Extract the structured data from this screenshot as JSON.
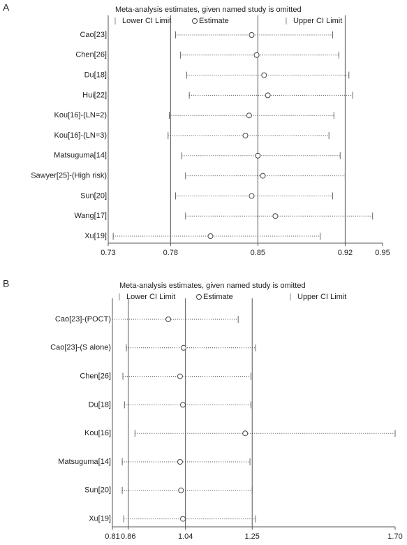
{
  "chart_data": [
    {
      "type": "forest",
      "panel": "A",
      "title": "Meta-analysis estimates, given named study is omitted",
      "legend": [
        "Lower CI Limit",
        "Estimate",
        "Upper CI Limit"
      ],
      "categories": [
        "Cao[23]",
        "Chen[26]",
        "Du[18]",
        "Hui[22]",
        "Kou[16]-(LN=2)",
        "Kou[16]-(LN=3)",
        "Matsuguma[14]",
        "Sawyer[25]-(High risk)",
        "Sun[20]",
        "Wang[17]",
        "Xu[19]"
      ],
      "lower": [
        0.784,
        0.788,
        0.793,
        0.795,
        0.779,
        0.778,
        0.789,
        0.792,
        0.784,
        0.792,
        0.734
      ],
      "estimate": [
        0.845,
        0.849,
        0.855,
        0.858,
        0.843,
        0.84,
        0.85,
        0.854,
        0.845,
        0.864,
        0.812
      ],
      "upper": [
        0.91,
        0.915,
        0.923,
        0.926,
        0.911,
        0.907,
        0.916,
        0.92,
        0.91,
        0.942,
        0.9
      ],
      "xlim": [
        0.73,
        0.95
      ],
      "xticks": [
        0.73,
        0.78,
        0.85,
        0.92,
        0.95
      ],
      "reference_lines": [
        0.78,
        0.85,
        0.92
      ]
    },
    {
      "type": "forest",
      "panel": "B",
      "title": "Meta-analysis estimates, given named study is omitted",
      "legend": [
        "Lower CI Limit",
        "Estimate",
        "Upper CI Limit"
      ],
      "categories": [
        "Cao[23]-(POCT)",
        "Cao[23]-(S alone)",
        "Chen[26]",
        "Du[18]",
        "Kou[16]",
        "Matsuguma[14]",
        "Sun[20]",
        "Xu[19]"
      ],
      "lower": [
        0.81,
        0.854,
        0.843,
        0.848,
        0.881,
        0.841,
        0.841,
        0.846
      ],
      "estimate": [
        0.986,
        1.034,
        1.023,
        1.032,
        1.228,
        1.023,
        1.026,
        1.032
      ],
      "upper": [
        1.206,
        1.261,
        1.246,
        1.246,
        1.7,
        1.243,
        1.25,
        1.261
      ],
      "xlim": [
        0.81,
        1.7
      ],
      "xticks": [
        0.81,
        0.86,
        1.04,
        1.25,
        {
          "value": 1.7,
          "label": "1.70"
        }
      ],
      "reference_lines": [
        0.86,
        1.04,
        1.25
      ]
    }
  ]
}
